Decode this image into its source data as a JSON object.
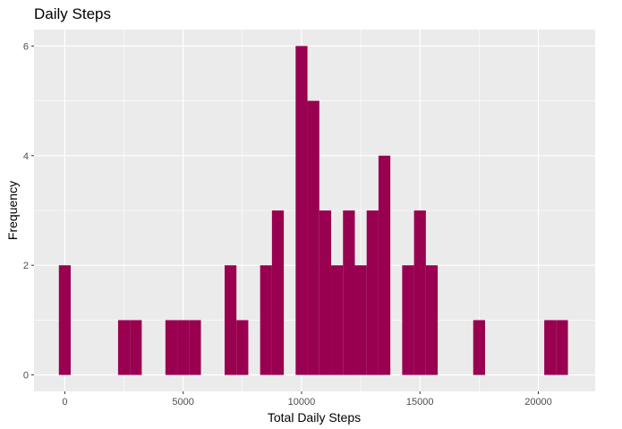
{
  "chart_data": {
    "type": "bar",
    "title": "Daily Steps",
    "xlabel": "Total Daily Steps",
    "ylabel": "Frequency",
    "bin_width": 500,
    "xlim": [
      -1300,
      22400
    ],
    "ylim": [
      -0.3,
      6.3
    ],
    "x_ticks": [
      0,
      5000,
      10000,
      15000,
      20000
    ],
    "x_tick_labels": [
      "0",
      "5000",
      "10000",
      "15000",
      "20000"
    ],
    "y_ticks": [
      0,
      2,
      4,
      6
    ],
    "y_tick_labels": [
      "0",
      "2",
      "4",
      "6"
    ],
    "bar_color": "#990050",
    "panel_color": "#ebebeb",
    "grid": true,
    "bins": [
      {
        "x": 0,
        "count": 2
      },
      {
        "x": 2500,
        "count": 1
      },
      {
        "x": 3000,
        "count": 1
      },
      {
        "x": 4500,
        "count": 1
      },
      {
        "x": 5000,
        "count": 1
      },
      {
        "x": 5500,
        "count": 1
      },
      {
        "x": 7000,
        "count": 2
      },
      {
        "x": 7500,
        "count": 1
      },
      {
        "x": 8500,
        "count": 2
      },
      {
        "x": 9000,
        "count": 3
      },
      {
        "x": 10000,
        "count": 6
      },
      {
        "x": 10500,
        "count": 5
      },
      {
        "x": 11000,
        "count": 3
      },
      {
        "x": 11500,
        "count": 2
      },
      {
        "x": 12000,
        "count": 3
      },
      {
        "x": 12500,
        "count": 2
      },
      {
        "x": 13000,
        "count": 3
      },
      {
        "x": 13500,
        "count": 4
      },
      {
        "x": 14500,
        "count": 2
      },
      {
        "x": 15000,
        "count": 3
      },
      {
        "x": 15500,
        "count": 2
      },
      {
        "x": 17500,
        "count": 1
      },
      {
        "x": 20500,
        "count": 1
      },
      {
        "x": 21000,
        "count": 1
      }
    ]
  }
}
